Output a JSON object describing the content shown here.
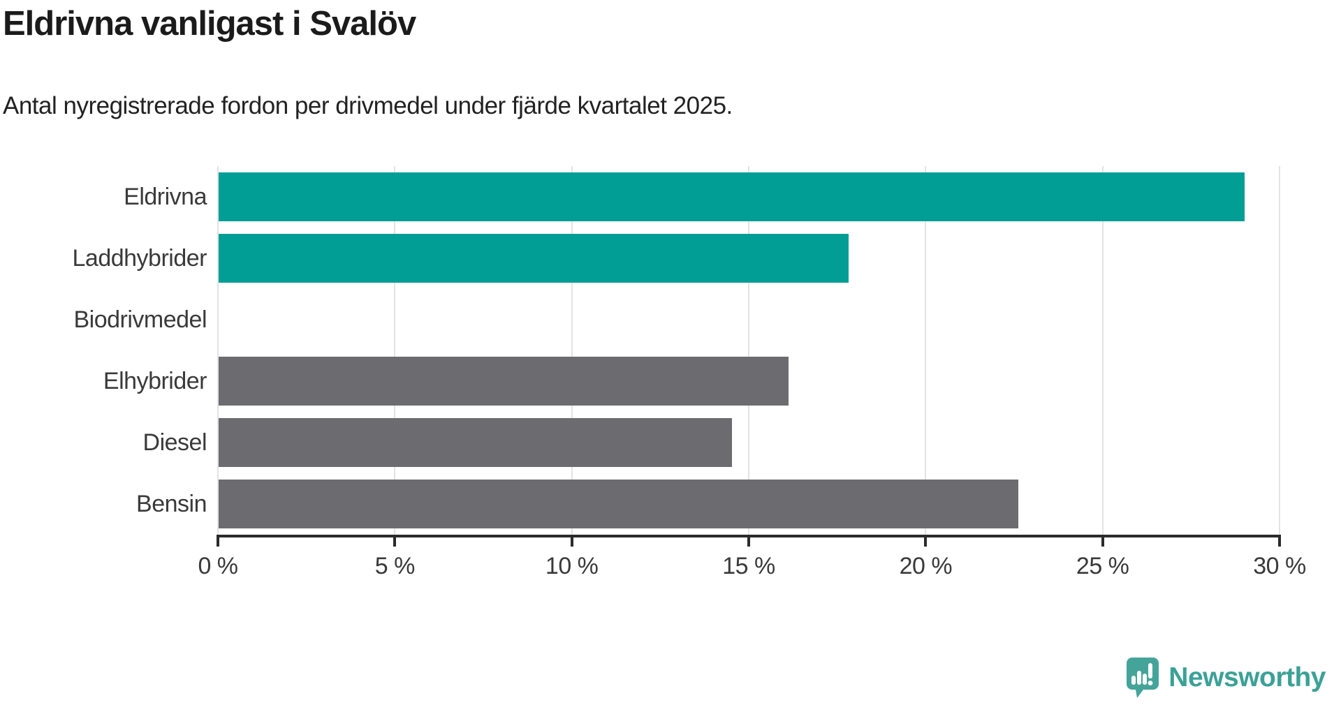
{
  "header": {
    "title": "Eldrivna vanligast i Svalöv",
    "subtitle": "Antal nyregistrerade fordon per drivmedel under fjärde kvartalet 2025."
  },
  "chart_data": {
    "type": "bar",
    "orientation": "horizontal",
    "title": "Eldrivna vanligast i Svalöv",
    "subtitle": "Antal nyregistrerade fordon per drivmedel under fjärde kvartalet 2025.",
    "categories": [
      "Eldrivna",
      "Laddhybrider",
      "Biodrivmedel",
      "Elhybrider",
      "Diesel",
      "Bensin"
    ],
    "values": [
      29.0,
      17.8,
      0,
      16.1,
      14.5,
      22.6
    ],
    "unit": "%",
    "bar_colors": [
      "#019e96",
      "#019e96",
      "#6b6b70",
      "#6b6b70",
      "#6b6b70",
      "#6b6b70"
    ],
    "highlight_color": "#019e96",
    "default_color": "#6b6b70",
    "xlabel": "",
    "ylabel": "",
    "xlim": [
      0,
      30
    ],
    "x_tick_values": [
      0,
      5,
      10,
      15,
      20,
      25,
      30
    ],
    "x_tick_labels": [
      "0 %",
      "5 %",
      "10 %",
      "15 %",
      "20 %",
      "25 %",
      "30 %"
    ],
    "grid": true,
    "gridline_color": "#e3e3e3",
    "axis_color": "#2b2b2b",
    "legend": "none"
  },
  "footer": {
    "brand": "Newsworthy",
    "brand_color": "#3ba197",
    "logo_icon": "newsworthy-speech-bubble-chart-icon"
  }
}
